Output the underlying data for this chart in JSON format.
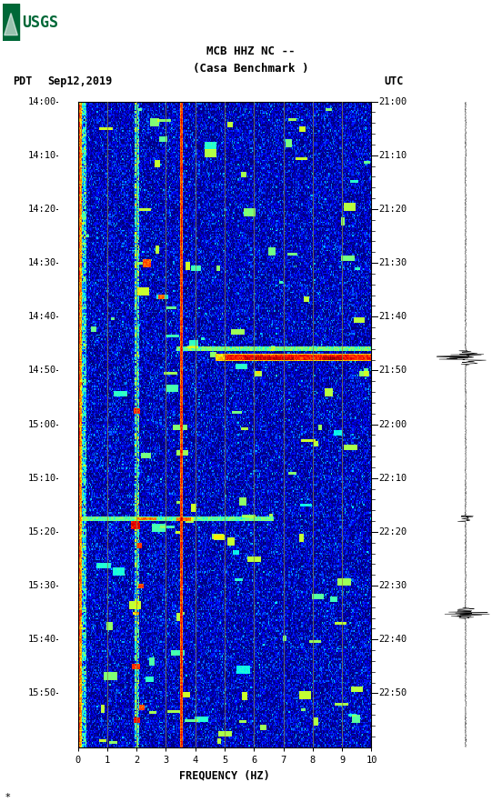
{
  "title_line1": "MCB HHZ NC --",
  "title_line2": "(Casa Benchmark )",
  "left_label": "PDT",
  "date_label": "Sep12,2019",
  "right_label": "UTC",
  "left_times": [
    "14:00",
    "14:10",
    "14:20",
    "14:30",
    "14:40",
    "14:50",
    "15:00",
    "15:10",
    "15:20",
    "15:30",
    "15:40",
    "15:50"
  ],
  "right_times": [
    "21:00",
    "21:10",
    "21:20",
    "21:30",
    "21:40",
    "21:50",
    "22:00",
    "22:10",
    "22:20",
    "22:30",
    "22:40",
    "22:50"
  ],
  "freq_label": "FREQUENCY (HZ)",
  "freq_ticks": [
    0,
    1,
    2,
    3,
    4,
    5,
    6,
    7,
    8,
    9,
    10
  ],
  "n_time": 480,
  "n_freq": 300,
  "bg_color": "#ffffff",
  "colormap": "jet",
  "fig_width": 5.52,
  "fig_height": 8.93,
  "dpi": 100,
  "usgs_green": "#006837",
  "grid_color": "#888844",
  "grid_freqs": [
    1,
    2,
    3,
    4,
    5,
    6,
    7,
    8,
    9
  ],
  "yellow_line_freq_idx": 105,
  "eq_time_idx": 190,
  "eq2_time_idx": 310,
  "eq3_time_idx": 380
}
